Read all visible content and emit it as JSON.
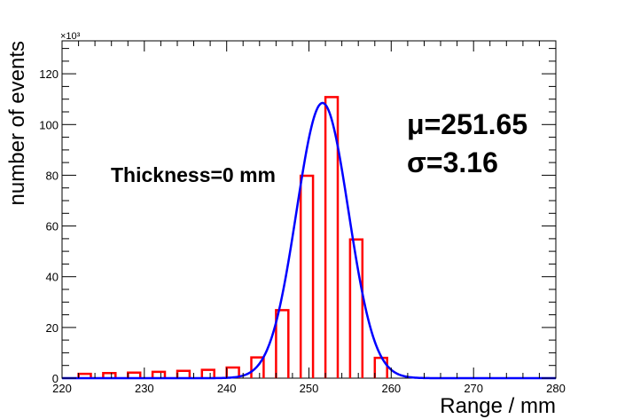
{
  "chart_data": {
    "type": "bar",
    "xlabel": "Range / mm",
    "ylabel": "number of events",
    "multiplier_label": "×10³",
    "xlim": [
      220,
      280
    ],
    "ylim": [
      0,
      133
    ],
    "x_ticks": [
      220,
      230,
      240,
      250,
      260,
      270,
      280
    ],
    "y_ticks": [
      0,
      20,
      40,
      60,
      80,
      100,
      120
    ],
    "grid": false,
    "annotations": {
      "thickness": "Thickness=0 mm",
      "mu": "μ=251.65",
      "sigma": "σ=3.16"
    },
    "histogram": {
      "bin_width": 1.5,
      "bin_starts": [
        222.0,
        225.0,
        228.0,
        231.0,
        234.0,
        237.0,
        240.0,
        243.0,
        246.0,
        249.0,
        252.0,
        255.0,
        258.0
      ],
      "values": [
        1.7,
        2.0,
        2.2,
        2.5,
        2.9,
        3.3,
        4.2,
        8.2,
        26.8,
        79.8,
        110.8,
        54.7,
        8.0
      ],
      "color": "#ff0000"
    },
    "fit": {
      "type": "gaussian",
      "mean": 251.65,
      "sigma": 3.16,
      "amplitude": 108.5,
      "color": "#0000ff"
    }
  }
}
